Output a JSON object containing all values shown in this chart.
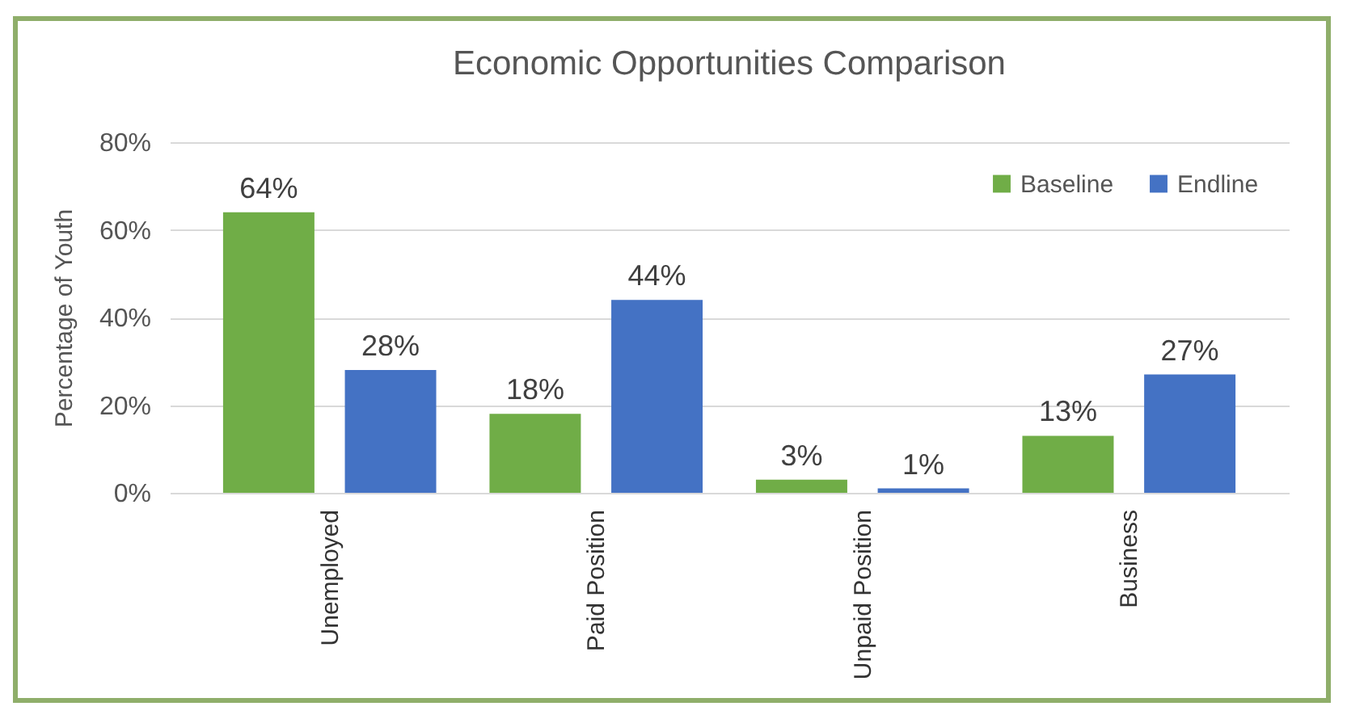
{
  "chart_data": {
    "type": "bar",
    "title": "Economic Opportunities Comparison",
    "ylabel": "Percentage of Youth",
    "categories": [
      "Unemployed",
      "Paid Position",
      "Unpaid Position",
      "Business"
    ],
    "series": [
      {
        "name": "Baseline",
        "color": "#70ad47",
        "values": [
          64,
          18,
          3,
          13
        ],
        "value_labels": [
          "64%",
          "18%",
          "3%",
          "13%"
        ]
      },
      {
        "name": "Endline",
        "color": "#4472c4",
        "values": [
          28,
          44,
          1,
          27
        ],
        "value_labels": [
          "28%",
          "44%",
          "1%",
          "27%"
        ]
      }
    ],
    "ylim": [
      0,
      80
    ],
    "yticks": [
      {
        "value": 0,
        "label": "0%"
      },
      {
        "value": 20,
        "label": "20%"
      },
      {
        "value": 40,
        "label": "40%"
      },
      {
        "value": 60,
        "label": "60%"
      },
      {
        "value": 80,
        "label": "80%"
      }
    ],
    "grid": "y",
    "legend": "top right"
  }
}
